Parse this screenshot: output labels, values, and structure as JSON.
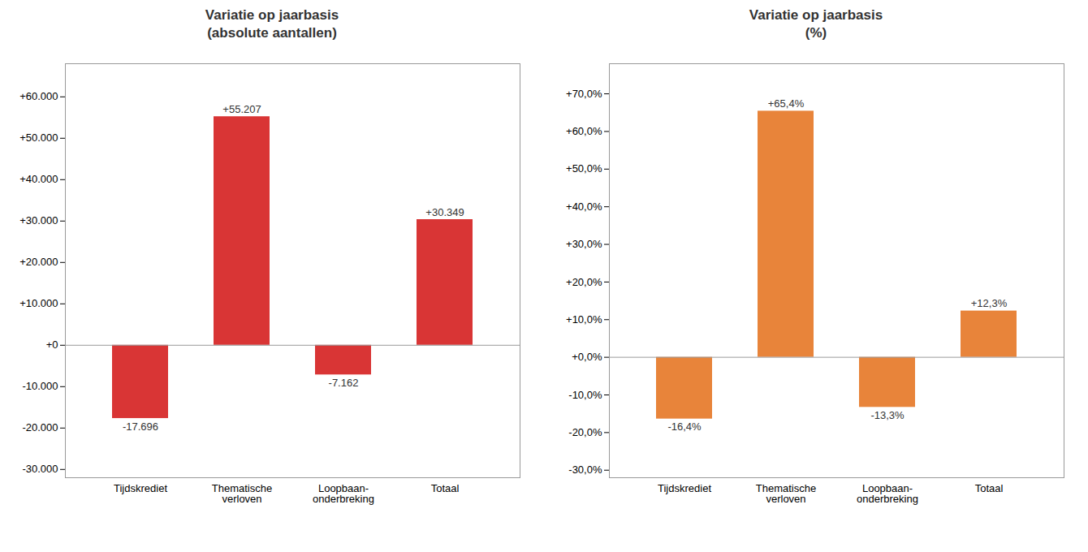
{
  "chart_data": [
    {
      "type": "bar",
      "title": "Variatie op jaarbasis\n(absolute aantallen)",
      "categories": [
        "Tijdskrediet",
        "Thematische\nverloven",
        "Loopbaan-\nonderbreking",
        "Totaal"
      ],
      "values": [
        -17696,
        55207,
        -7162,
        30349
      ],
      "value_labels": [
        "-17.696",
        "+55.207",
        "-7.162",
        "+30.349"
      ],
      "data_labels": true,
      "color": "#d93535",
      "ylim": [
        -32000,
        68000
      ],
      "yticks": [
        {
          "value": -30000,
          "label": "-30.000"
        },
        {
          "value": -20000,
          "label": "-20.000"
        },
        {
          "value": -10000,
          "label": "-10.000"
        },
        {
          "value": 0,
          "label": "+0"
        },
        {
          "value": 10000,
          "label": "+10.000"
        },
        {
          "value": 20000,
          "label": "+20.000"
        },
        {
          "value": 30000,
          "label": "+30.000"
        },
        {
          "value": 40000,
          "label": "+40.000"
        },
        {
          "value": 50000,
          "label": "+50.000"
        },
        {
          "value": 60000,
          "label": "+60.000"
        }
      ],
      "grid": false
    },
    {
      "type": "bar",
      "title": "Variatie op jaarbasis\n(%)",
      "categories": [
        "Tijdskrediet",
        "Thematische\nverloven",
        "Loopbaan-\nonderbreking",
        "Totaal"
      ],
      "values": [
        -16.4,
        65.4,
        -13.3,
        12.3
      ],
      "value_labels": [
        "-16,4%",
        "+65,4%",
        "-13,3%",
        "+12,3%"
      ],
      "data_labels": true,
      "color": "#e8843a",
      "ylim": [
        -32,
        78
      ],
      "yticks": [
        {
          "value": -30,
          "label": "-30,0%"
        },
        {
          "value": -20,
          "label": "-20,0%"
        },
        {
          "value": -10,
          "label": "-10,0%"
        },
        {
          "value": 0,
          "label": "+0,0%"
        },
        {
          "value": 10,
          "label": "+10,0%"
        },
        {
          "value": 20,
          "label": "+20,0%"
        },
        {
          "value": 30,
          "label": "+30,0%"
        },
        {
          "value": 40,
          "label": "+40,0%"
        },
        {
          "value": 50,
          "label": "+50,0%"
        },
        {
          "value": 60,
          "label": "+60,0%"
        },
        {
          "value": 70,
          "label": "+70,0%"
        }
      ],
      "grid": false
    }
  ]
}
